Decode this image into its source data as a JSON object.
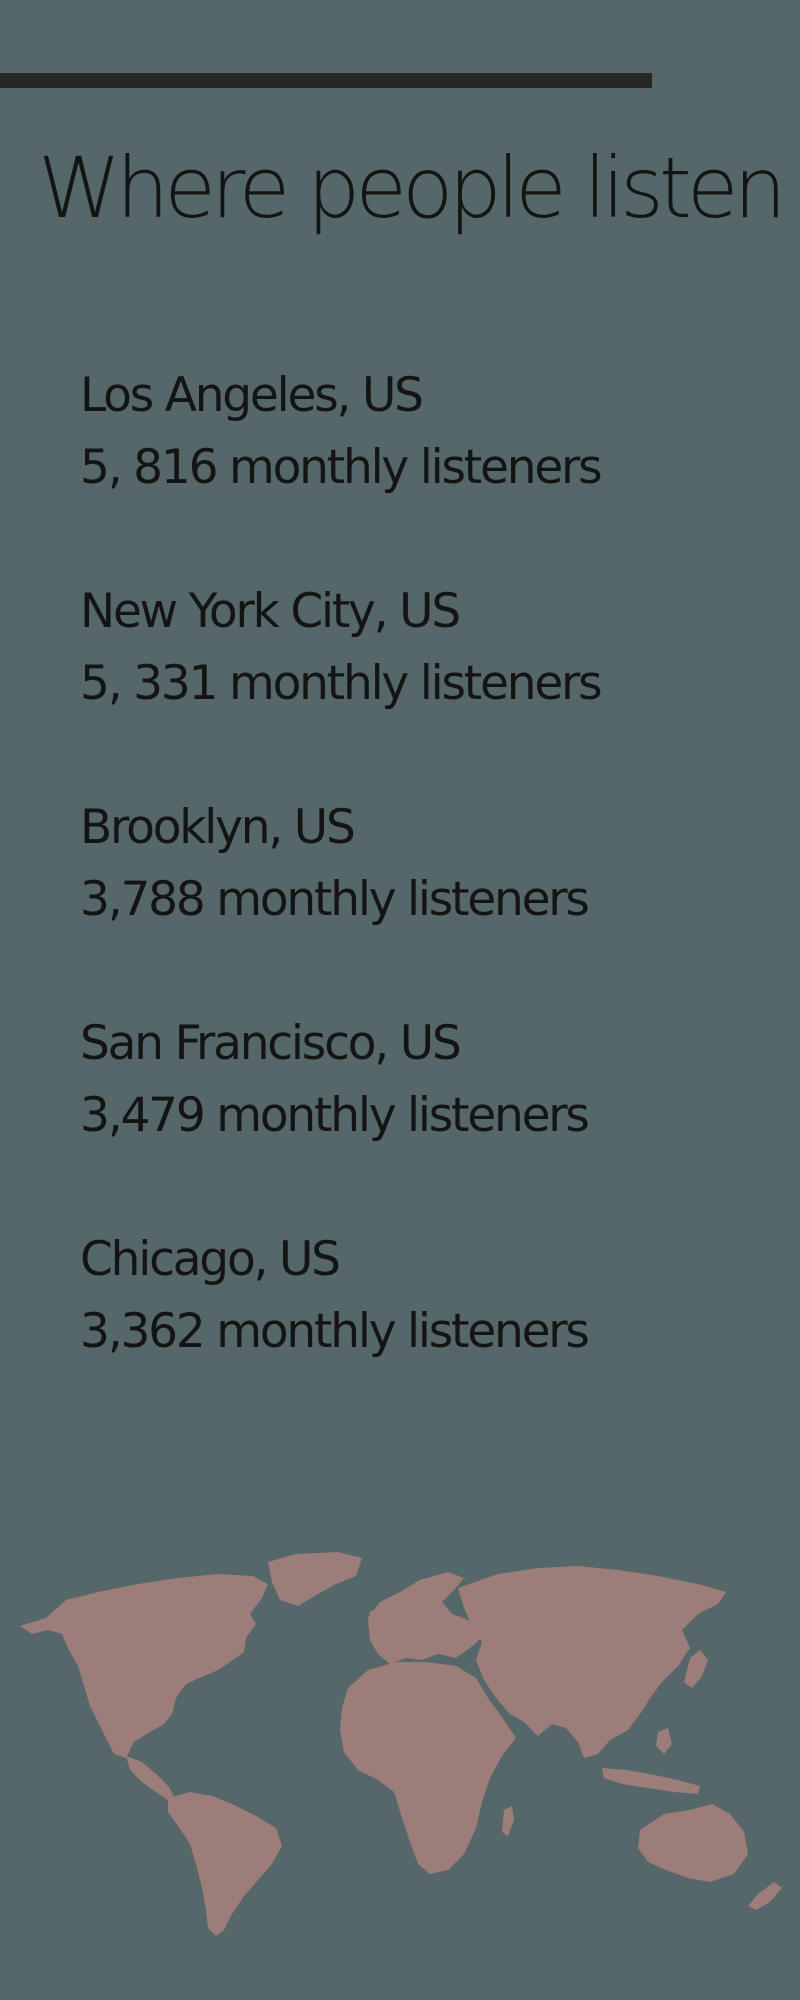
{
  "header": {
    "title": "Where people listen"
  },
  "cities": [
    {
      "name": "Los Angeles, US",
      "listeners": "5, 816 monthly listeners"
    },
    {
      "name": "New York City, US",
      "listeners": "5, 331 monthly listeners"
    },
    {
      "name": "Brooklyn, US",
      "listeners": "3,788 monthly listeners"
    },
    {
      "name": "San Francisco, US",
      "listeners": "3,479 monthly listeners"
    },
    {
      "name": "Chicago, US",
      "listeners": "3,362 monthly listeners"
    }
  ],
  "colors": {
    "background": "#556769",
    "accent_bar": "#272727",
    "text": "#141414",
    "map_fill": "#9d7d79"
  },
  "map": {
    "icon": "world-map-icon"
  }
}
